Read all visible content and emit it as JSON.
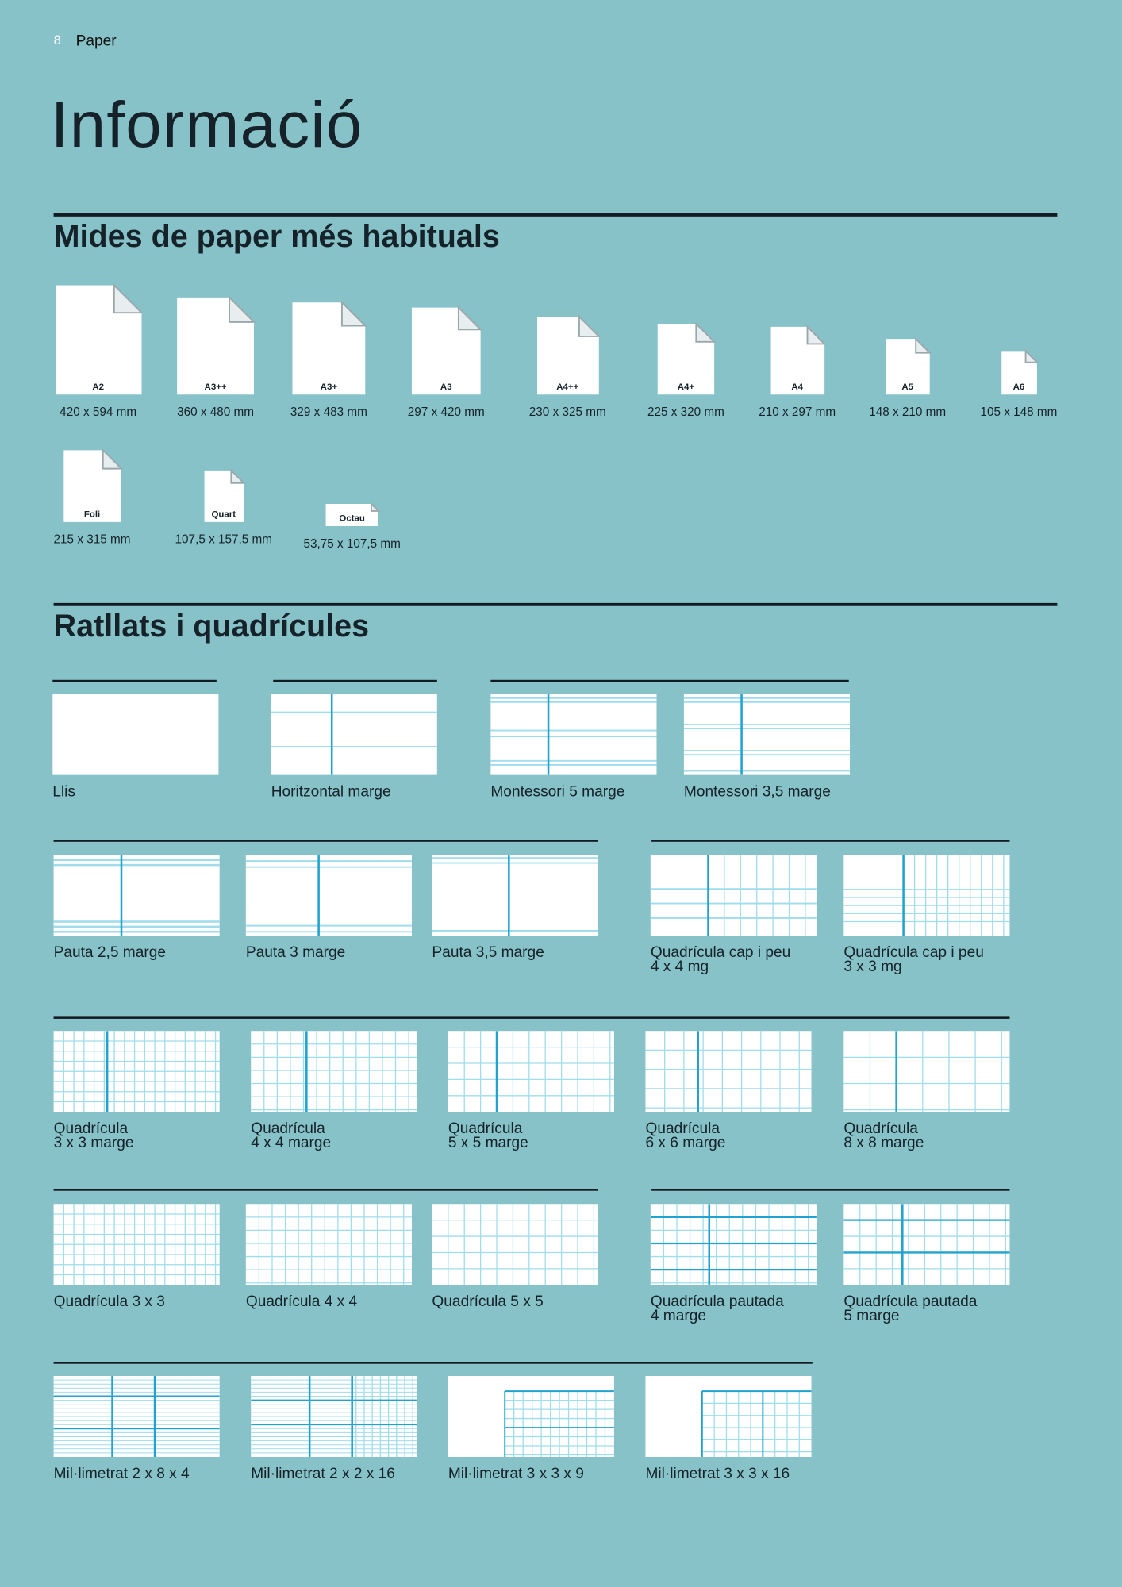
{
  "header": {
    "page_number": "8",
    "section": "Paper",
    "title": "Informació"
  },
  "sizes": {
    "heading": "Mides de paper més habituals",
    "items": [
      {
        "name": "A2",
        "dims": "420 x 594 mm"
      },
      {
        "name": "A3++",
        "dims": "360 x 480 mm"
      },
      {
        "name": "A3+",
        "dims": "329 x 483 mm"
      },
      {
        "name": "A3",
        "dims": "297 x 420 mm"
      },
      {
        "name": "A4++",
        "dims": "230 x 325 mm"
      },
      {
        "name": "A4+",
        "dims": "225 x 320 mm"
      },
      {
        "name": "A4",
        "dims": "210 x 297 mm"
      },
      {
        "name": "A5",
        "dims": "148 x 210 mm"
      },
      {
        "name": "A6",
        "dims": "105 x 148 mm"
      },
      {
        "name": "Foli",
        "dims": "215 x 315 mm"
      },
      {
        "name": "Quart",
        "dims": "107,5 x 157,5 mm"
      },
      {
        "name": "Octau",
        "dims": "53,75 x 107,5 mm"
      }
    ]
  },
  "rulings": {
    "heading": "Ratllats i quadrícules",
    "colors": {
      "line": "#9fdcec",
      "margin": "#22a3cf",
      "background": "#86c2c7"
    },
    "items": [
      {
        "label": "Llis",
        "pattern": "blank"
      },
      {
        "label": "Horitzontal marge",
        "pattern": "horizontal-margin"
      },
      {
        "label": "Montessori 5 marge",
        "pattern": "montessori-5"
      },
      {
        "label": "Montessori 3,5 marge",
        "pattern": "montessori-3.5"
      },
      {
        "label": "Pauta 2,5 marge",
        "pattern": "pauta-2.5"
      },
      {
        "label": "Pauta 3 marge",
        "pattern": "pauta-3"
      },
      {
        "label": "Pauta 3,5 marge",
        "pattern": "pauta-3.5"
      },
      {
        "label": "Quadrícula cap i peu\n4 x 4 mg",
        "pattern": "cap-peu-4"
      },
      {
        "label": "Quadrícula cap i peu\n3 x 3 mg",
        "pattern": "cap-peu-3"
      },
      {
        "label": "Quadrícula\n3 x 3 marge",
        "pattern": "grid-3-margin"
      },
      {
        "label": "Quadrícula\n4 x 4 marge",
        "pattern": "grid-4-margin"
      },
      {
        "label": "Quadrícula\n5 x 5 marge",
        "pattern": "grid-5-margin"
      },
      {
        "label": "Quadrícula\n6 x 6 marge",
        "pattern": "grid-6-margin"
      },
      {
        "label": "Quadrícula\n8 x 8 marge",
        "pattern": "grid-8-margin"
      },
      {
        "label": "Quadrícula 3 x 3",
        "pattern": "grid-3"
      },
      {
        "label": "Quadrícula 4 x 4",
        "pattern": "grid-4"
      },
      {
        "label": "Quadrícula 5 x 5",
        "pattern": "grid-5"
      },
      {
        "label": "Quadrícula pautada\n4 marge",
        "pattern": "pautada-4"
      },
      {
        "label": "Quadrícula pautada\n5 marge",
        "pattern": "pautada-5"
      },
      {
        "label": "Mil·limetrat 2 x 8 x 4",
        "pattern": "mil-2-8-4"
      },
      {
        "label": "Mil·limetrat 2 x 2 x 16",
        "pattern": "mil-2-2-16"
      },
      {
        "label": "Mil·limetrat 3 x 3 x 9",
        "pattern": "mil-3-3-9"
      },
      {
        "label": "Mil·limetrat 3 x 3 x 16",
        "pattern": "mil-3-3-16"
      }
    ]
  }
}
